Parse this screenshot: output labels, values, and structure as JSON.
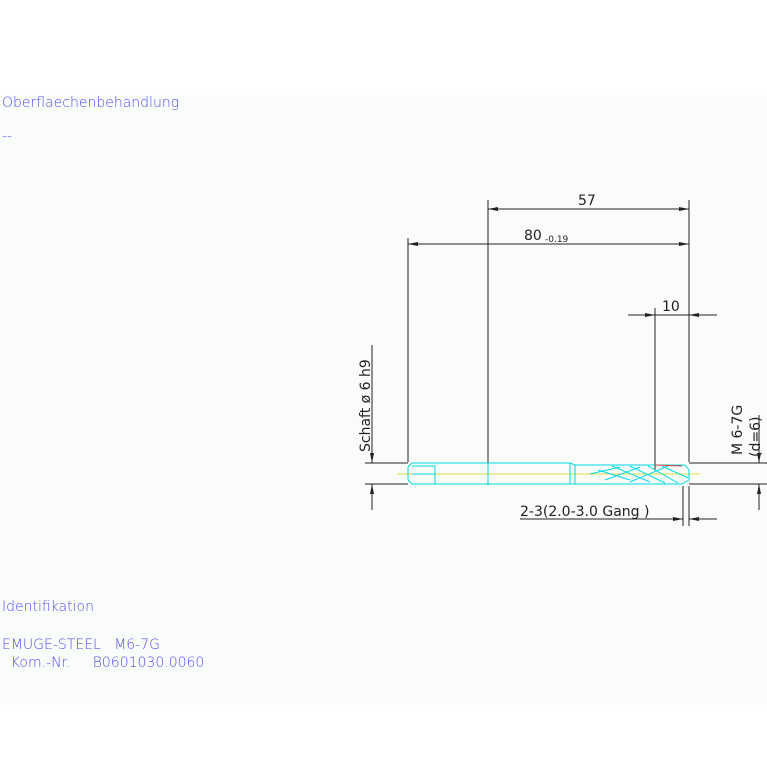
{
  "surface": {
    "heading": "Oberflaechenbehandlung",
    "value": "--"
  },
  "identification": {
    "heading": "Identifikation",
    "product": "EMUGE-STEEL   M6-7G",
    "part_number": "  Kom.-Nr.     B0601030.0060"
  },
  "drawing": {
    "dim_57": "57",
    "dim_80": "80",
    "dim_80_tol": "-0.19",
    "dim_10": "10",
    "shaft": "Schaft ø 6  h9",
    "thread": "M 6-7G",
    "thread_d": "(d=6)",
    "chamfer": "2-3(2.0-3.0 Gang  )"
  },
  "colors": {
    "text": "#5050f0",
    "tool": "#00d8e8",
    "dim": "#222222",
    "centerline": "#e8d840"
  }
}
